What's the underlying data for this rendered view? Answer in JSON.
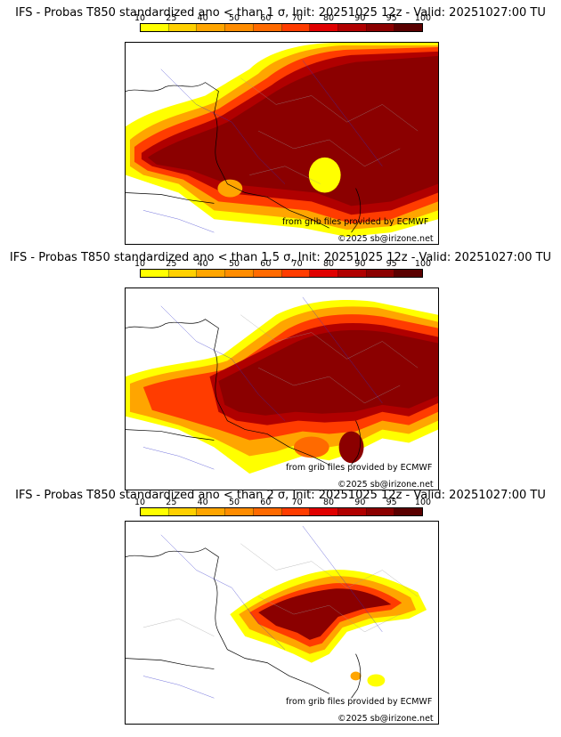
{
  "legend": {
    "ticks": [
      "10",
      "25",
      "40",
      "50",
      "60",
      "70",
      "80",
      "90",
      "95",
      "100"
    ],
    "colors": [
      "#ffff00",
      "#ffd000",
      "#ffa500",
      "#ff8c00",
      "#ff6a00",
      "#ff3c00",
      "#e00000",
      "#b00000",
      "#8b0000",
      "#5a0000"
    ]
  },
  "panels": [
    {
      "title": "IFS - Probas T850  standardized ano < than 1 σ, Init: 20251025 12z - Valid: 20251027:00 TU",
      "credit_source": "from grib files provided by ECMWF",
      "credit_copyright": "©2025 sb@irizone.net"
    },
    {
      "title": "IFS - Probas T850  standardized ano < than 1.5 σ, Init: 20251025 12z - Valid: 20251027:00 TU",
      "credit_source": "from grib files provided by ECMWF",
      "credit_copyright": "©2025 sb@irizone.net"
    },
    {
      "title": "IFS - Probas T850  standardized ano < than 2 σ, Init: 20251025 12z - Valid: 20251027:00 TU",
      "credit_source": "from grib files provided by ECMWF",
      "credit_copyright": "©2025 sb@irizone.net"
    }
  ]
}
